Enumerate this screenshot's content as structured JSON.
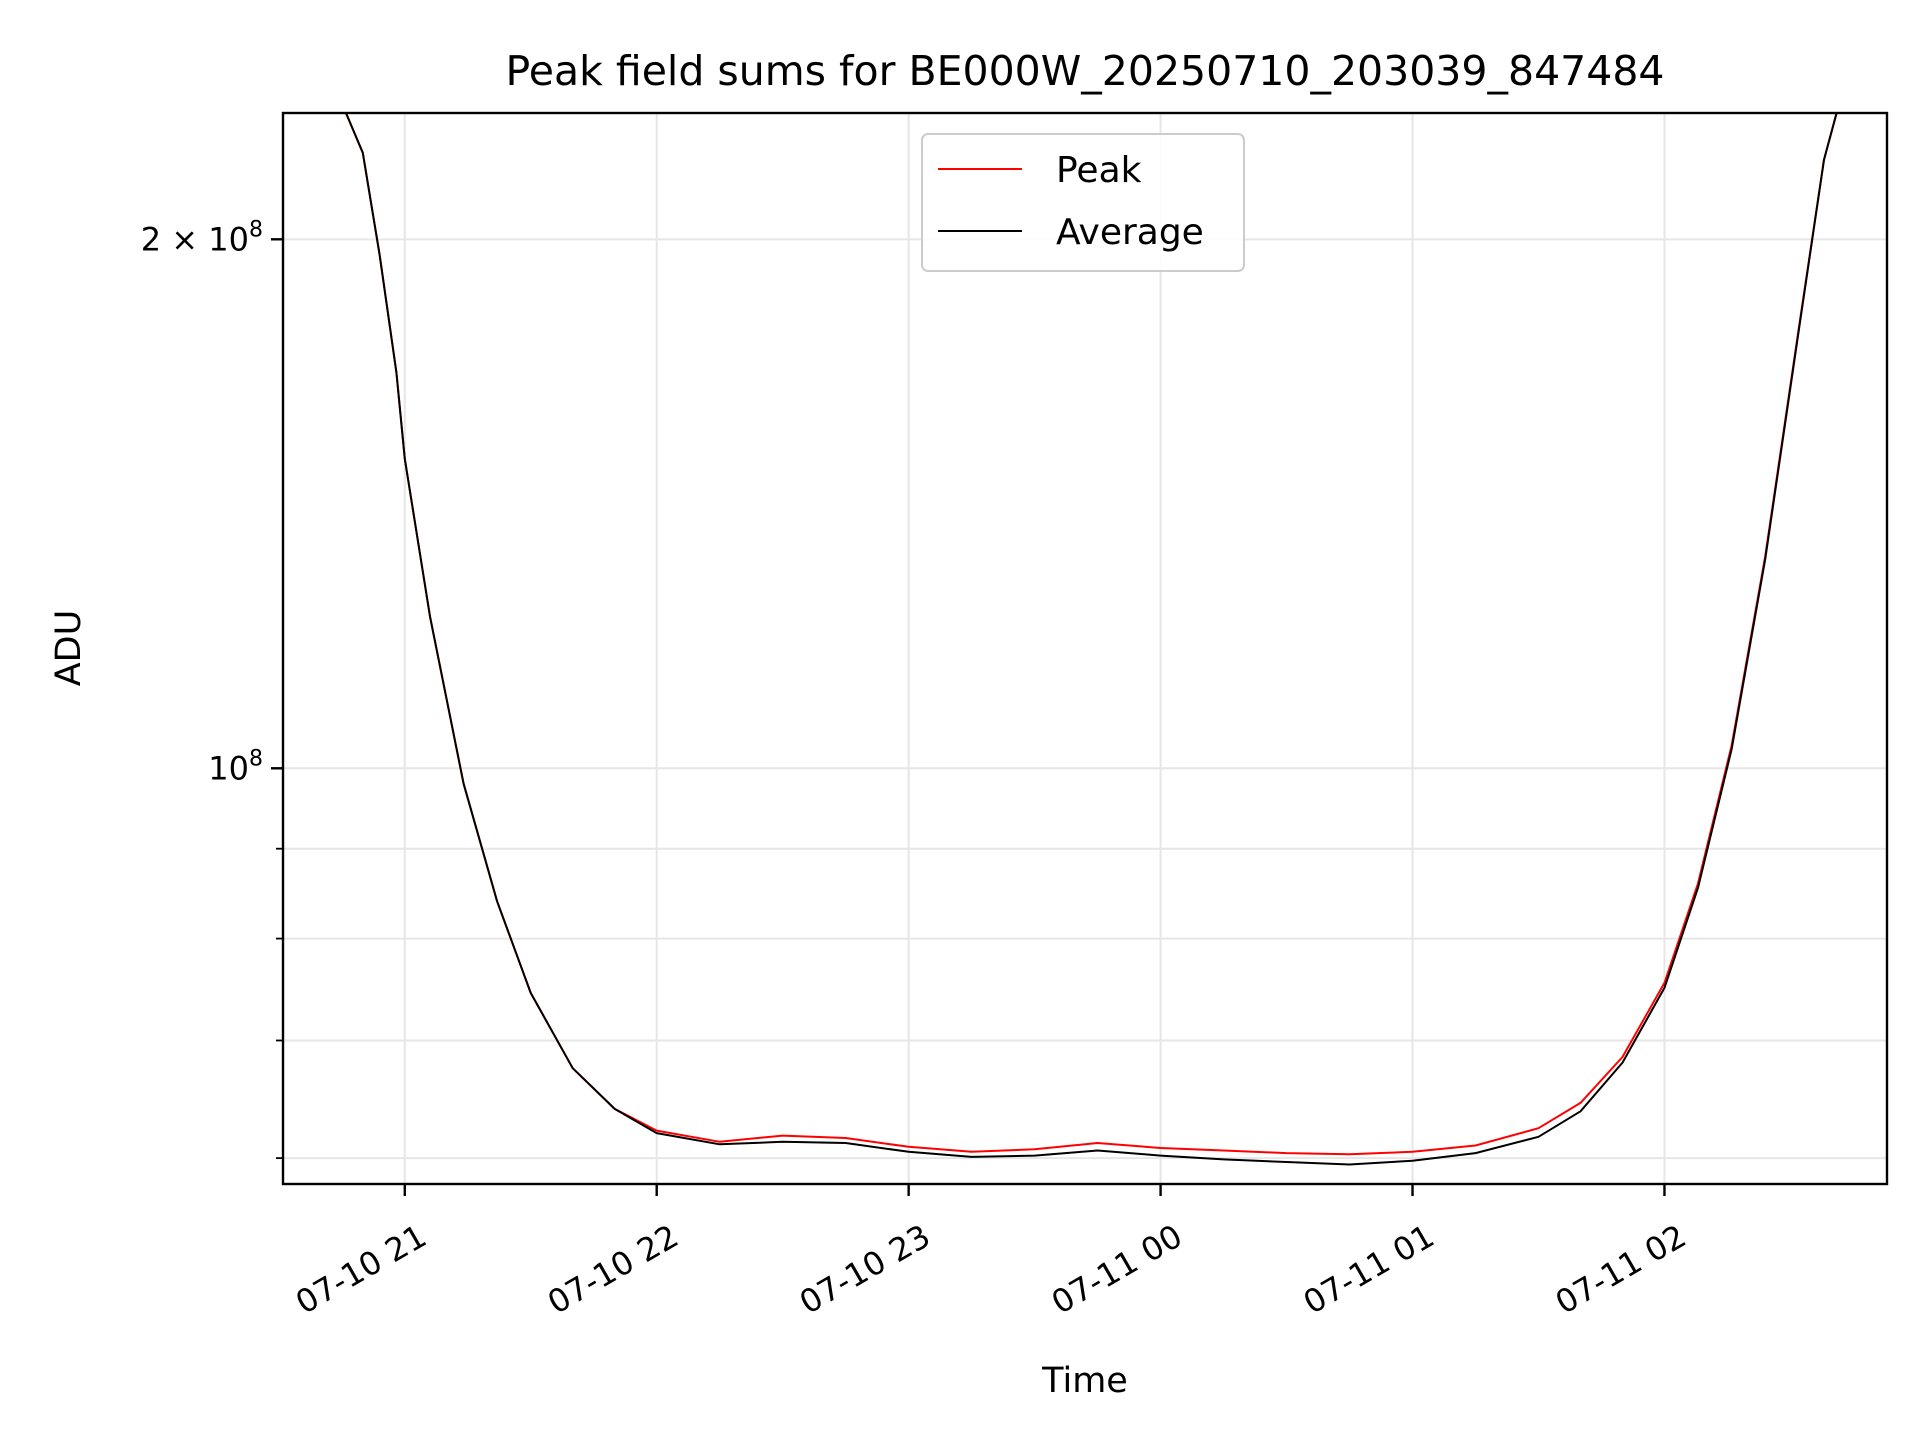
{
  "chart_data": {
    "type": "line",
    "title": "Peak field sums for BE000W_20250710_203039_847484",
    "xlabel": "Time",
    "ylabel": "ADU",
    "yscale": "log",
    "grid": true,
    "legend_placement": "upper-center",
    "x_unit": "time",
    "x_range": [
      "2025-07-10 20:31",
      "2025-07-11 02:53"
    ],
    "ylim": [
      58000000,
      236000000
    ],
    "x_ticks": [
      "07-10 21",
      "07-10 22",
      "07-10 23",
      "07-11 00",
      "07-11 01",
      "07-11 02"
    ],
    "x_tick_times": [
      "2025-07-10 21:00",
      "2025-07-10 22:00",
      "2025-07-10 23:00",
      "2025-07-11 00:00",
      "2025-07-11 01:00",
      "2025-07-11 02:00"
    ],
    "y_ticks_major": [
      {
        "value": 100000000,
        "base": "10",
        "exp": "8"
      },
      {
        "value": 200000000,
        "mant": "2",
        "base": "10",
        "exp": "8"
      }
    ],
    "y_ticks_minor": [
      60000000,
      70000000,
      80000000,
      90000000
    ],
    "series": [
      {
        "name": "Peak",
        "color": "#ff0000",
        "points": [
          [
            "2025-07-10 20:31",
            236000000
          ],
          [
            "2025-07-10 20:46",
            236000000
          ],
          [
            "2025-07-10 20:50",
            224000000
          ],
          [
            "2025-07-10 20:54",
            196000000
          ],
          [
            "2025-07-10 20:58",
            168000000
          ],
          [
            "2025-07-10 21:00",
            150000000
          ],
          [
            "2025-07-10 21:06",
            122000000
          ],
          [
            "2025-07-10 21:14",
            98000000
          ],
          [
            "2025-07-10 21:22",
            84000000
          ],
          [
            "2025-07-10 21:30",
            74500000
          ],
          [
            "2025-07-10 21:40",
            67500000
          ],
          [
            "2025-07-10 21:50",
            64000000
          ],
          [
            "2025-07-10 22:00",
            62200000
          ],
          [
            "2025-07-10 22:15",
            61300000
          ],
          [
            "2025-07-10 22:30",
            61800000
          ],
          [
            "2025-07-10 22:45",
            61600000
          ],
          [
            "2025-07-10 23:00",
            60900000
          ],
          [
            "2025-07-10 23:15",
            60500000
          ],
          [
            "2025-07-10 23:30",
            60700000
          ],
          [
            "2025-07-10 23:45",
            61200000
          ],
          [
            "2025-07-11 00:00",
            60800000
          ],
          [
            "2025-07-11 00:15",
            60600000
          ],
          [
            "2025-07-11 00:30",
            60400000
          ],
          [
            "2025-07-11 00:45",
            60300000
          ],
          [
            "2025-07-11 01:00",
            60500000
          ],
          [
            "2025-07-11 01:15",
            61000000
          ],
          [
            "2025-07-11 01:30",
            62400000
          ],
          [
            "2025-07-11 01:40",
            64500000
          ],
          [
            "2025-07-11 01:50",
            68500000
          ],
          [
            "2025-07-11 02:00",
            75500000
          ],
          [
            "2025-07-11 02:08",
            86000000
          ],
          [
            "2025-07-11 02:16",
            103000000
          ],
          [
            "2025-07-11 02:24",
            132000000
          ],
          [
            "2025-07-11 02:32",
            178000000
          ],
          [
            "2025-07-11 02:38",
            222000000
          ],
          [
            "2025-07-11 02:41",
            236000000
          ],
          [
            "2025-07-11 02:53",
            236000000
          ]
        ]
      },
      {
        "name": "Average",
        "color": "#000000",
        "points": [
          [
            "2025-07-10 20:31",
            236000000
          ],
          [
            "2025-07-10 20:46",
            236000000
          ],
          [
            "2025-07-10 20:50",
            224000000
          ],
          [
            "2025-07-10 20:54",
            196000000
          ],
          [
            "2025-07-10 20:58",
            168000000
          ],
          [
            "2025-07-10 21:00",
            150000000
          ],
          [
            "2025-07-10 21:06",
            122000000
          ],
          [
            "2025-07-10 21:14",
            98000000
          ],
          [
            "2025-07-10 21:22",
            84000000
          ],
          [
            "2025-07-10 21:30",
            74500000
          ],
          [
            "2025-07-10 21:40",
            67500000
          ],
          [
            "2025-07-10 21:50",
            64000000
          ],
          [
            "2025-07-10 22:00",
            62000000
          ],
          [
            "2025-07-10 22:15",
            61100000
          ],
          [
            "2025-07-10 22:30",
            61300000
          ],
          [
            "2025-07-10 22:45",
            61200000
          ],
          [
            "2025-07-10 23:00",
            60500000
          ],
          [
            "2025-07-10 23:15",
            60100000
          ],
          [
            "2025-07-10 23:30",
            60200000
          ],
          [
            "2025-07-10 23:45",
            60600000
          ],
          [
            "2025-07-11 00:00",
            60200000
          ],
          [
            "2025-07-11 00:15",
            59900000
          ],
          [
            "2025-07-11 00:30",
            59700000
          ],
          [
            "2025-07-11 00:45",
            59500000
          ],
          [
            "2025-07-11 01:00",
            59800000
          ],
          [
            "2025-07-11 01:15",
            60400000
          ],
          [
            "2025-07-11 01:30",
            61700000
          ],
          [
            "2025-07-11 01:40",
            63800000
          ],
          [
            "2025-07-11 01:50",
            68000000
          ],
          [
            "2025-07-11 02:00",
            75000000
          ],
          [
            "2025-07-11 02:08",
            85500000
          ],
          [
            "2025-07-11 02:16",
            102500000
          ],
          [
            "2025-07-11 02:24",
            131500000
          ],
          [
            "2025-07-11 02:32",
            177500000
          ],
          [
            "2025-07-11 02:38",
            222000000
          ],
          [
            "2025-07-11 02:41",
            236000000
          ],
          [
            "2025-07-11 02:53",
            236000000
          ]
        ]
      }
    ]
  }
}
